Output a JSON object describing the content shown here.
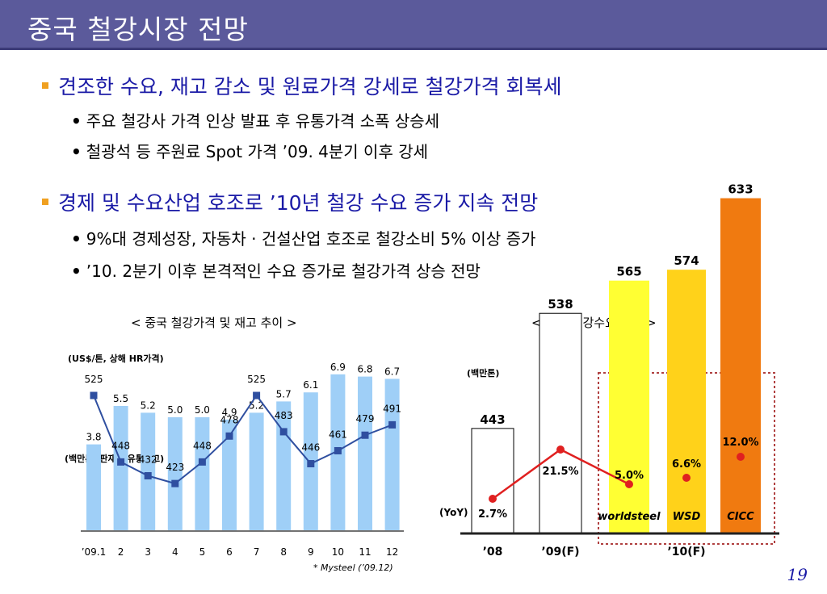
{
  "header": {
    "title": "중국 철강시장 전망"
  },
  "bullets": [
    {
      "text": "견조한 수요, 재고 감소 및 원료가격 강세로 철강가격 회복세",
      "subs": [
        "주요 철강사 가격 인상 발표 후 유통가격 소폭 상승세",
        "철광석 등 주원료 Spot 가격 ’09. 4분기 이후 강세"
      ]
    },
    {
      "text": "경제 및 수요산업 호조로 ’10년 철강 수요 증가 지속 전망",
      "subs": [
        "9%대 경제성장, 자동차 · 건설산업 호조로 철강소비 5% 이상 증가",
        "’10. 2분기 이후 본격적인 수요 증가로 철강가격 상승 전망"
      ]
    }
  ],
  "chart_data": [
    {
      "type": "bar",
      "title": "< 중국 철강가격 및 재고 추이 >",
      "categories": [
        "’09.1",
        "2",
        "3",
        "4",
        "5",
        "6",
        "7",
        "8",
        "9",
        "10",
        "11",
        "12"
      ],
      "series": [
        {
          "name": "(US$/톤, 상해 HR가격)",
          "type": "line",
          "values": [
            525,
            448,
            432,
            423,
            448,
            478,
            525,
            483,
            446,
            461,
            479,
            491
          ]
        },
        {
          "name": "(백만톤, 판재류 유통재고)",
          "type": "bar",
          "values": [
            3.8,
            5.5,
            5.2,
            5.0,
            5.0,
            4.9,
            5.2,
            5.7,
            6.1,
            6.9,
            6.8,
            6.7
          ]
        }
      ],
      "source": "* Mysteel (’09.12)",
      "colors": {
        "bar": "#9fcff7",
        "line": "#2f4fa0"
      }
    },
    {
      "type": "bar",
      "title": "< 중국 철강수요 전망 >",
      "unit": "(백만톤)",
      "yoy_label": "(YoY)",
      "categories": [
        "’08",
        "’09(F)",
        "’10(F)"
      ],
      "bars": [
        {
          "value": "443",
          "yoy": "2.7%",
          "source": "",
          "color": "#ffffff",
          "group": "’08"
        },
        {
          "value": "538",
          "yoy": "21.5%",
          "source": "",
          "color": "#ffffff",
          "group": "’09(F)"
        },
        {
          "value": "565",
          "yoy": "5.0%",
          "source": "worldsteel",
          "color": "#ffff33",
          "group": "’10(F)"
        },
        {
          "value": "574",
          "yoy": "6.6%",
          "source": "WSD",
          "color": "#ffd21a",
          "group": "’10(F)"
        },
        {
          "value": "633",
          "yoy": "12.0%",
          "source": "CICC",
          "color": "#f07a10",
          "group": "’10(F)"
        }
      ],
      "colors": {
        "yoy_marker": "#e02020"
      }
    }
  ],
  "page_number": "19"
}
